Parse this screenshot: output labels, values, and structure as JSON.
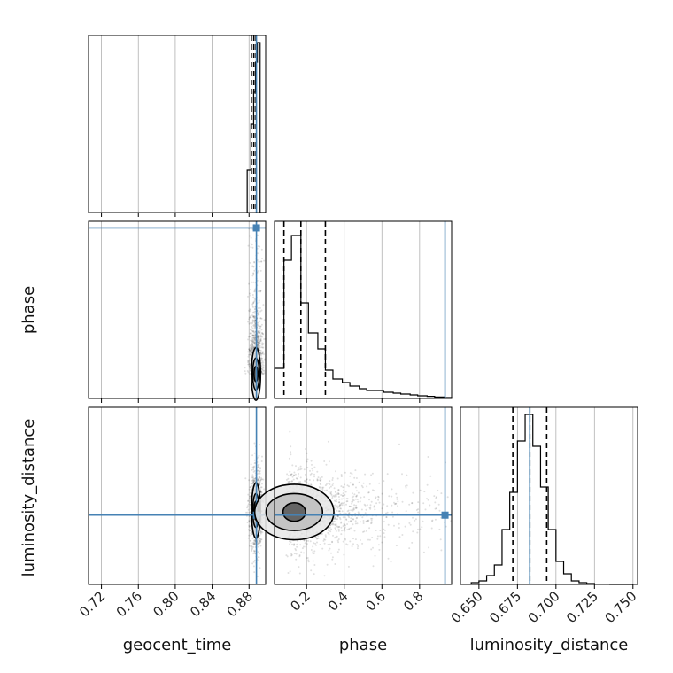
{
  "chart_data": {
    "type": "corner",
    "parameters": [
      "geocent_time",
      "phase",
      "luminosity_distance"
    ],
    "truths": {
      "geocent_time": 0.888,
      "phase": 0.935,
      "luminosity_distance": 0.683
    },
    "colors": {
      "truth": "#4682b4",
      "hist": "#000000",
      "grid": "#b0b0b0",
      "points": "#000000"
    },
    "grid": true,
    "axes": {
      "geocent_time": {
        "lim": [
          0.706,
          0.898
        ],
        "ticks": [
          0.72,
          0.76,
          0.8,
          0.84,
          0.88
        ],
        "tick_labels": [
          "0.72",
          "0.76",
          "0.80",
          "0.84",
          "0.88"
        ]
      },
      "phase": {
        "lim": [
          0.03,
          0.97
        ],
        "ticks": [
          0.2,
          0.4,
          0.6,
          0.8
        ],
        "tick_labels": [
          "0.2",
          "0.4",
          "0.6",
          "0.8"
        ]
      },
      "luminosity_distance": {
        "lim": [
          0.638,
          0.753
        ],
        "ticks": [
          0.65,
          0.675,
          0.7,
          0.725,
          0.75
        ],
        "tick_labels": [
          "0.650",
          "0.675",
          "0.700",
          "0.725",
          "0.750"
        ]
      }
    },
    "histograms": {
      "geocent_time": {
        "bins": [
          0.878,
          0.882,
          0.885,
          0.887,
          0.889,
          0.892,
          0.898
        ],
        "counts": [
          0.24,
          0.5,
          0.68,
          0.85,
          0.96,
          0.0
        ],
        "quantiles": [
          0.8825,
          0.8852,
          0.8875
        ]
      },
      "phase": {
        "bins": [
          0.03,
          0.08,
          0.12,
          0.17,
          0.21,
          0.26,
          0.3,
          0.34,
          0.39,
          0.43,
          0.48,
          0.52,
          0.57,
          0.61,
          0.66,
          0.7,
          0.75,
          0.79,
          0.84,
          0.88,
          0.93,
          0.97
        ],
        "counts": [
          0.17,
          0.78,
          0.92,
          0.54,
          0.37,
          0.28,
          0.16,
          0.11,
          0.09,
          0.07,
          0.055,
          0.045,
          0.045,
          0.035,
          0.03,
          0.025,
          0.02,
          0.015,
          0.012,
          0.008,
          0.005
        ],
        "quantiles": [
          0.08,
          0.17,
          0.3
        ]
      },
      "luminosity_distance": {
        "bins": [
          0.645,
          0.65,
          0.655,
          0.66,
          0.665,
          0.67,
          0.675,
          0.68,
          0.685,
          0.69,
          0.695,
          0.7,
          0.705,
          0.71,
          0.715,
          0.72,
          0.725,
          0.73,
          0.735,
          0.74,
          0.745,
          0.75
        ],
        "counts": [
          0.01,
          0.02,
          0.05,
          0.11,
          0.31,
          0.52,
          0.81,
          0.96,
          0.78,
          0.55,
          0.31,
          0.13,
          0.06,
          0.02,
          0.01,
          0.005,
          0.002,
          0.001,
          0.0,
          0.0,
          0.0
        ],
        "quantiles": [
          0.672,
          0.683,
          0.694
        ]
      }
    },
    "contours_2d": {
      "phase_vs_geocent_time": {
        "center": [
          0.8875,
          0.16
        ],
        "levels": [
          {
            "sx": 0.0022,
            "sy": 0.04
          },
          {
            "sx": 0.0036,
            "sy": 0.085
          },
          {
            "sx": 0.005,
            "sy": 0.14
          }
        ]
      },
      "luminosity_distance_vs_geocent_time": {
        "center": [
          0.8875,
          0.686
        ],
        "levels": [
          {
            "sx": 0.0022,
            "sy": 0.006
          },
          {
            "sx": 0.0035,
            "sy": 0.011
          },
          {
            "sx": 0.0048,
            "sy": 0.018
          }
        ]
      },
      "luminosity_distance_vs_phase": {
        "center": [
          0.135,
          0.685
        ],
        "levels": [
          {
            "sx": 0.06,
            "sy": 0.006
          },
          {
            "sx": 0.15,
            "sy": 0.012
          },
          {
            "sx": 0.21,
            "sy": 0.018
          }
        ]
      }
    }
  }
}
